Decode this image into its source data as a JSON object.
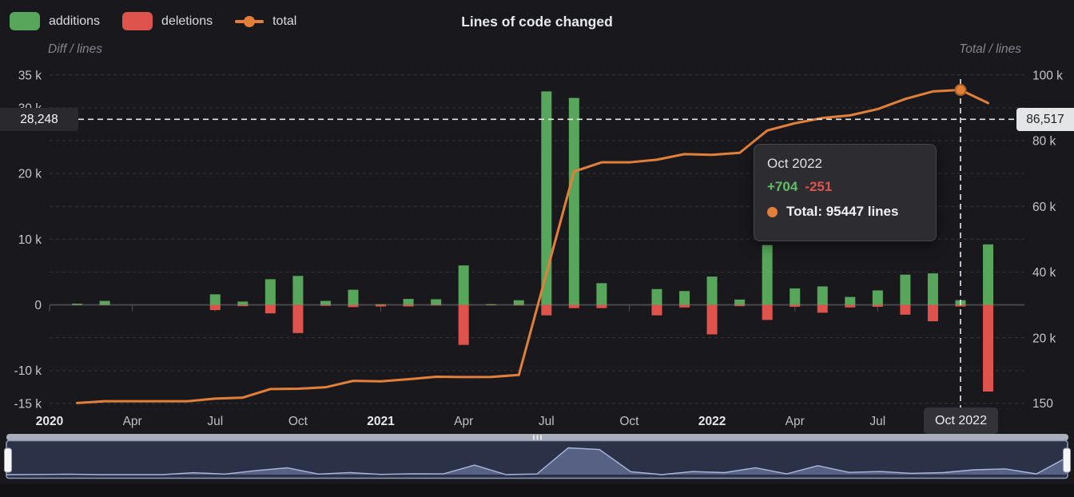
{
  "panel": {
    "title": "Lines of code changed"
  },
  "legend": {
    "items": [
      {
        "label": "additions",
        "color": "#57a65b",
        "marker": "pill"
      },
      {
        "label": "deletions",
        "color": "#df534d",
        "marker": "pill"
      },
      {
        "label": "total",
        "color": "#e2803a",
        "marker": "line-dot"
      }
    ]
  },
  "axes": {
    "left": {
      "name": "Diff / lines",
      "ticks": [
        {
          "label": "35 k",
          "value": 35000
        },
        {
          "label": "30 k",
          "value": 30000
        },
        {
          "label": "20 k",
          "value": 20000
        },
        {
          "label": "10 k",
          "value": 10000
        },
        {
          "label": "0",
          "value": 0
        },
        {
          "label": "-10 k",
          "value": -10000
        },
        {
          "label": "-15 k",
          "value": -15000
        }
      ]
    },
    "right": {
      "name": "Total / lines",
      "ticks": [
        {
          "label": "100 k",
          "value": 100000
        },
        {
          "label": "80 k",
          "value": 80000
        },
        {
          "label": "60 k",
          "value": 60000
        },
        {
          "label": "40 k",
          "value": 40000
        },
        {
          "label": "20 k",
          "value": 20000
        },
        {
          "label": "150",
          "value": 150
        }
      ]
    },
    "x": {
      "ticks": [
        {
          "label": "2020",
          "index": 0,
          "bold": true
        },
        {
          "label": "Apr",
          "index": 3
        },
        {
          "label": "Jul",
          "index": 6
        },
        {
          "label": "Oct",
          "index": 9
        },
        {
          "label": "2021",
          "index": 12,
          "bold": true
        },
        {
          "label": "Apr",
          "index": 15
        },
        {
          "label": "Jul",
          "index": 18
        },
        {
          "label": "Oct",
          "index": 21
        },
        {
          "label": "2022",
          "index": 24,
          "bold": true
        },
        {
          "label": "Apr",
          "index": 27
        },
        {
          "label": "Jul",
          "index": 30
        }
      ]
    }
  },
  "crosshair": {
    "left_label": "28,248",
    "left_value": 28248,
    "right_label": "86,517",
    "right_value": 86517,
    "x_label": "Oct 2022",
    "x_index": 33
  },
  "tooltip": {
    "title": "Oct 2022",
    "additions": "+704",
    "deletions": "-251",
    "total": "Total: 95447 lines",
    "marker_color": "#e2803a"
  },
  "chart_data": {
    "type": "bar+line",
    "title": "Lines of code changed",
    "x": [
      "Jan 2020",
      "Feb 2020",
      "Mar 2020",
      "Apr 2020",
      "May 2020",
      "Jun 2020",
      "Jul 2020",
      "Aug 2020",
      "Sep 2020",
      "Oct 2020",
      "Nov 2020",
      "Dec 2020",
      "Jan 2021",
      "Feb 2021",
      "Mar 2021",
      "Apr 2021",
      "May 2021",
      "Jun 2021",
      "Jul 2021",
      "Aug 2021",
      "Sep 2021",
      "Oct 2021",
      "Nov 2021",
      "Dec 2021",
      "Jan 2022",
      "Feb 2022",
      "Mar 2022",
      "Apr 2022",
      "May 2022",
      "Jun 2022",
      "Jul 2022",
      "Aug 2022",
      "Sep 2022",
      "Oct 2022",
      "Nov 2022"
    ],
    "series": [
      {
        "name": "additions",
        "type": "bar",
        "axis": "left",
        "color": "#57a65b",
        "values": [
          0,
          180,
          600,
          0,
          0,
          0,
          1600,
          500,
          3900,
          4400,
          600,
          2300,
          100,
          900,
          850,
          6000,
          100,
          700,
          32500,
          31500,
          3300,
          0,
          2400,
          2100,
          4300,
          800,
          9100,
          2500,
          2800,
          1200,
          2200,
          4600,
          4794,
          704,
          9200
        ]
      },
      {
        "name": "deletions",
        "type": "bar",
        "axis": "left",
        "color": "#df534d",
        "values": [
          0,
          -30,
          -50,
          0,
          0,
          0,
          -800,
          -200,
          -1300,
          -4300,
          -150,
          -350,
          -250,
          -250,
          -100,
          -6100,
          -50,
          -100,
          -1600,
          -500,
          -500,
          0,
          -1600,
          -400,
          -4500,
          -200,
          -2300,
          -300,
          -1200,
          -400,
          -300,
          -1500,
          -2500,
          -251,
          -13200
        ]
      },
      {
        "name": "total",
        "type": "line",
        "axis": "right",
        "color": "#e2803a",
        "values": [
          null,
          150,
          700,
          700,
          700,
          700,
          1500,
          1800,
          4400,
          4500,
          4950,
          6900,
          6750,
          7400,
          8150,
          8050,
          8100,
          8700,
          39600,
          70600,
          73400,
          73400,
          74200,
          75900,
          75700,
          76300,
          83100,
          85300,
          86900,
          87700,
          89600,
          92700,
          94994,
          95447,
          91447
        ]
      }
    ],
    "ylim_left": [
      -15000,
      35000
    ],
    "ylim_right": [
      150,
      100000
    ],
    "grid": "horizontal dashed gridlines every 5k (left axis)",
    "legend_position": "top-left",
    "highlight": {
      "x": "Oct 2022",
      "additions": 704,
      "deletions": -251,
      "total": 95447
    }
  },
  "colors": {
    "background": "#19191d",
    "grid": "#35353a",
    "zero_axis": "#47474c",
    "crosshair": "#e8e8e8",
    "tick_text": "#c6c6c9",
    "slider_fill": "#2b3247",
    "slider_border": "#8e99b8",
    "slider_area": "#5e6a8f",
    "slider_area_line": "#aab8de",
    "slider_track": "#a9afba",
    "slider_handle": "#f5f6f9"
  }
}
